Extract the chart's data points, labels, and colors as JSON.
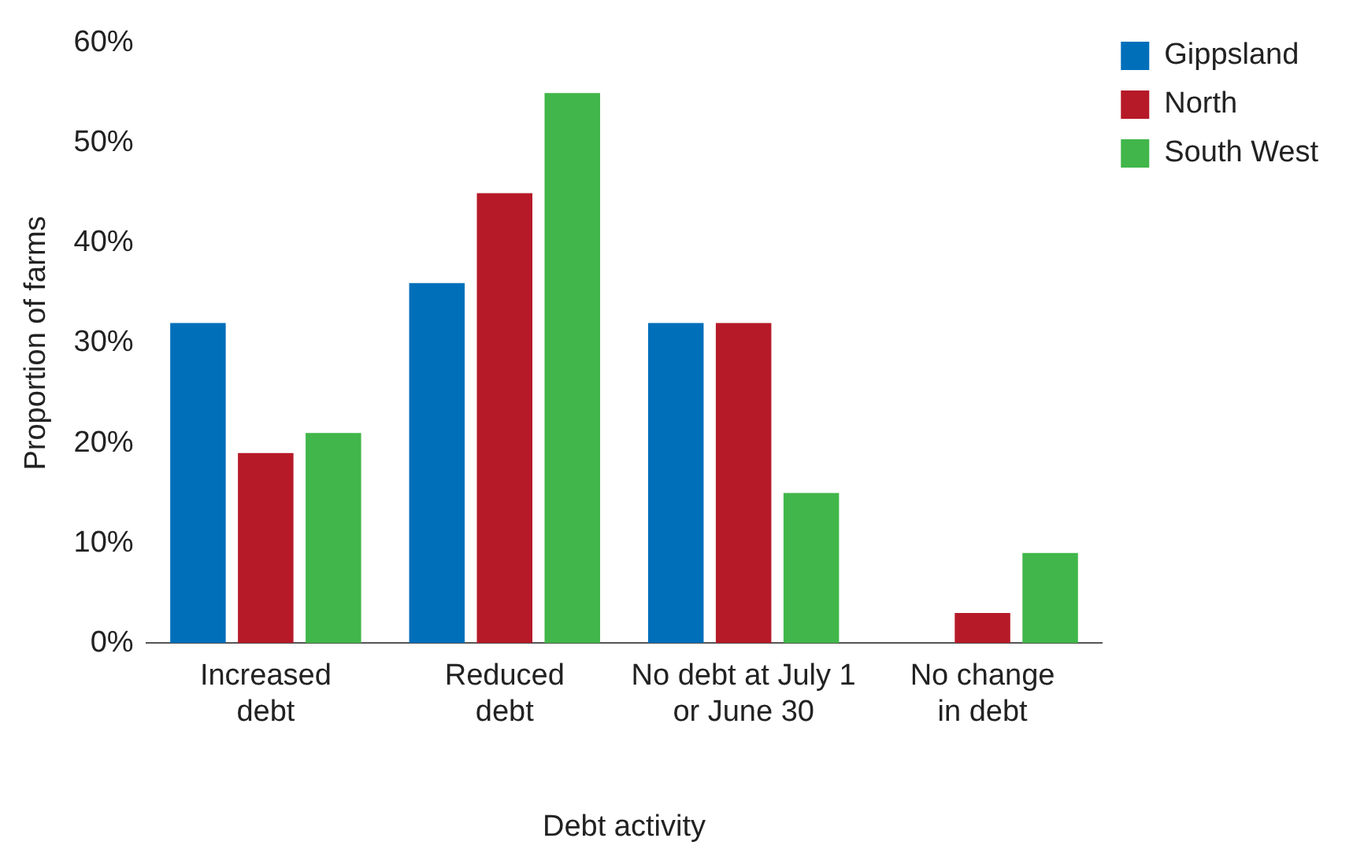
{
  "chart_data": {
    "type": "bar",
    "xlabel": "Debt activity",
    "ylabel": "Proportion of farms",
    "categories": [
      "Increased\ndebt",
      "Reduced\ndebt",
      "No debt at July 1\nor June 30",
      "No change\nin debt"
    ],
    "series": [
      {
        "name": "Gippsland",
        "color": "#006fba",
        "values": [
          32,
          36,
          32,
          0
        ]
      },
      {
        "name": "North",
        "color": "#b61a28",
        "values": [
          19,
          45,
          32,
          3
        ]
      },
      {
        "name": "South West",
        "color": "#41b64a",
        "values": [
          21,
          55,
          15,
          9
        ]
      }
    ],
    "ylim": [
      0,
      60
    ],
    "yticks": [
      {
        "value": 0,
        "label": "0%"
      },
      {
        "value": 10,
        "label": "10%"
      },
      {
        "value": 20,
        "label": "20%"
      },
      {
        "value": 30,
        "label": "30%"
      },
      {
        "value": 40,
        "label": "40%"
      },
      {
        "value": 50,
        "label": "50%"
      },
      {
        "value": 60,
        "label": "60%"
      }
    ],
    "grid": false,
    "legend": "top right"
  }
}
